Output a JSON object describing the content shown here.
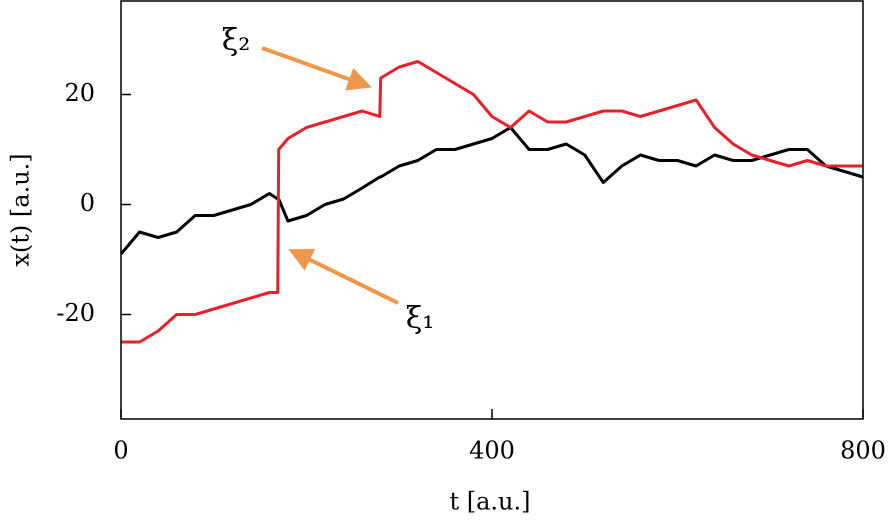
{
  "chart_data": {
    "type": "line",
    "x_label": "t [a.u.]",
    "y_label": "x(t) [a.u.]",
    "x": [
      0,
      20,
      40,
      60,
      80,
      100,
      120,
      140,
      160,
      169,
      170,
      180,
      200,
      220,
      240,
      260,
      279,
      280,
      300,
      320,
      340,
      360,
      380,
      400,
      420,
      440,
      460,
      480,
      500,
      520,
      540,
      560,
      580,
      600,
      620,
      640,
      660,
      680,
      700,
      720,
      740,
      760,
      780,
      800
    ],
    "series": [
      {
        "color": "#000000",
        "values": [
          -9,
          -5,
          -6,
          -5,
          -2,
          -2,
          -1,
          0,
          2,
          1,
          1,
          -3,
          -2,
          0,
          1,
          3,
          5,
          5,
          7,
          8,
          10,
          10,
          11,
          12,
          14,
          10,
          10,
          11,
          9,
          4,
          7,
          9,
          8,
          8,
          7,
          9,
          8,
          8,
          9,
          10,
          10,
          7,
          6,
          5
        ]
      },
      {
        "color": "#e8202a",
        "values": [
          -25,
          -25,
          -23,
          -20,
          -20,
          -19,
          -18,
          -17,
          -16,
          -16,
          10,
          12,
          14,
          15,
          16,
          17,
          16,
          23,
          25,
          26,
          24,
          22,
          20,
          16,
          14,
          17,
          15,
          15,
          16,
          17,
          17,
          16,
          17,
          18,
          19,
          14,
          11,
          9,
          8,
          7,
          8,
          7,
          7,
          7
        ]
      }
    ],
    "annotations": [
      "ξ₂",
      "ξ₁"
    ],
    "xlim": [
      0,
      800
    ],
    "xticks": [
      0,
      400,
      800
    ],
    "ylim": [
      -39,
      37
    ],
    "yticks": [
      -20,
      0,
      20
    ]
  }
}
